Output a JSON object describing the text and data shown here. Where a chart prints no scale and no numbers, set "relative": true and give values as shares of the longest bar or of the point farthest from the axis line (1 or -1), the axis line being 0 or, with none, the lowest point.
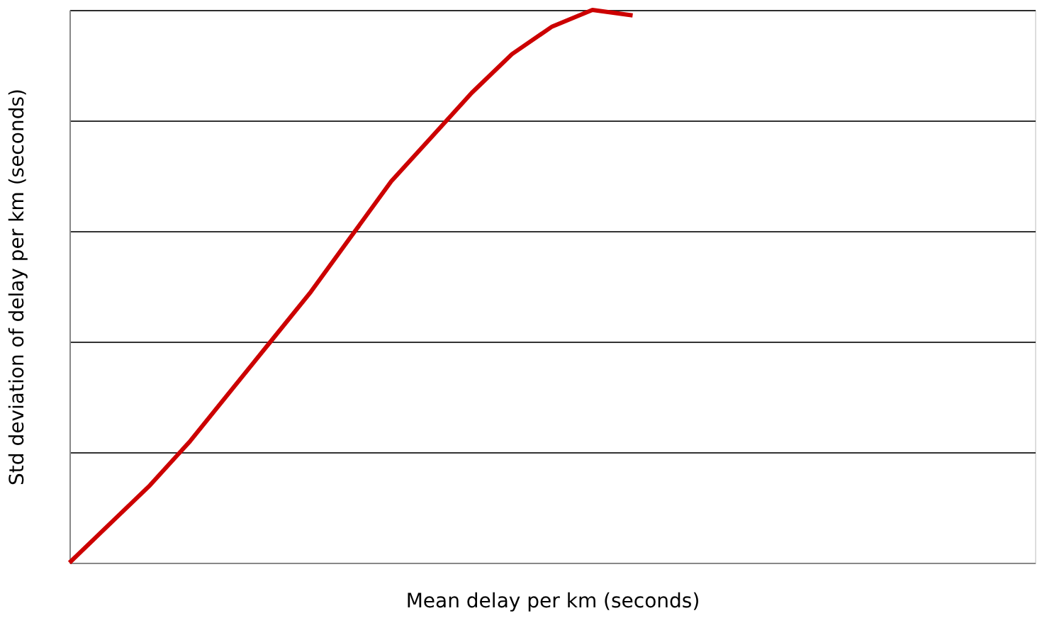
{
  "chart_data": {
    "type": "line",
    "relative": true,
    "xlabel": "Mean delay per km  (seconds)",
    "ylabel": "Std deviation of delay per km  (seconds)",
    "categories": [
      null,
      null,
      null,
      null,
      null,
      null,
      null,
      null,
      null,
      null,
      null,
      null,
      null,
      null,
      null,
      null,
      null,
      null,
      null,
      null,
      null,
      null,
      null,
      null,
      null
    ],
    "series": [
      {
        "color": "#cc0000",
        "values": [
          0,
          0.07,
          0.14,
          0.22,
          0.31,
          0.4,
          0.49,
          0.59,
          0.69,
          0.77,
          0.85,
          0.92,
          0.97,
          1.0,
          0.99,
          null,
          null,
          null,
          null,
          null,
          null,
          null,
          null,
          null,
          null
        ]
      }
    ],
    "grid": "y",
    "legend": false,
    "marker": "none",
    "line_style": "solid",
    "tick_labels": false
  }
}
